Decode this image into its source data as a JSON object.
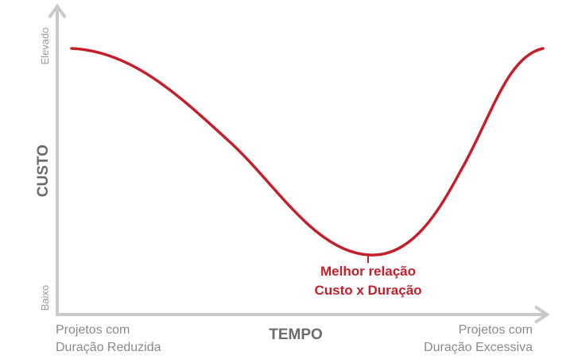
{
  "y_axis": {
    "title": "CUSTO",
    "high_label": "Elevado",
    "low_label": "Baixo"
  },
  "x_axis": {
    "title": "TEMPO",
    "left_label_line1": "Projetos com",
    "left_label_line2": "Duração Reduzida",
    "right_label_line1": "Projetos com",
    "right_label_line2": "Duração Excessiva"
  },
  "minimum_annotation": {
    "line1": "Melhor relação",
    "line2": "Custo x Duração"
  },
  "colors": {
    "curve": "#c4202b",
    "axis": "#c9c9c9",
    "axis_title": "#6b6b6b",
    "tick_label": "#9a9a9a"
  }
}
